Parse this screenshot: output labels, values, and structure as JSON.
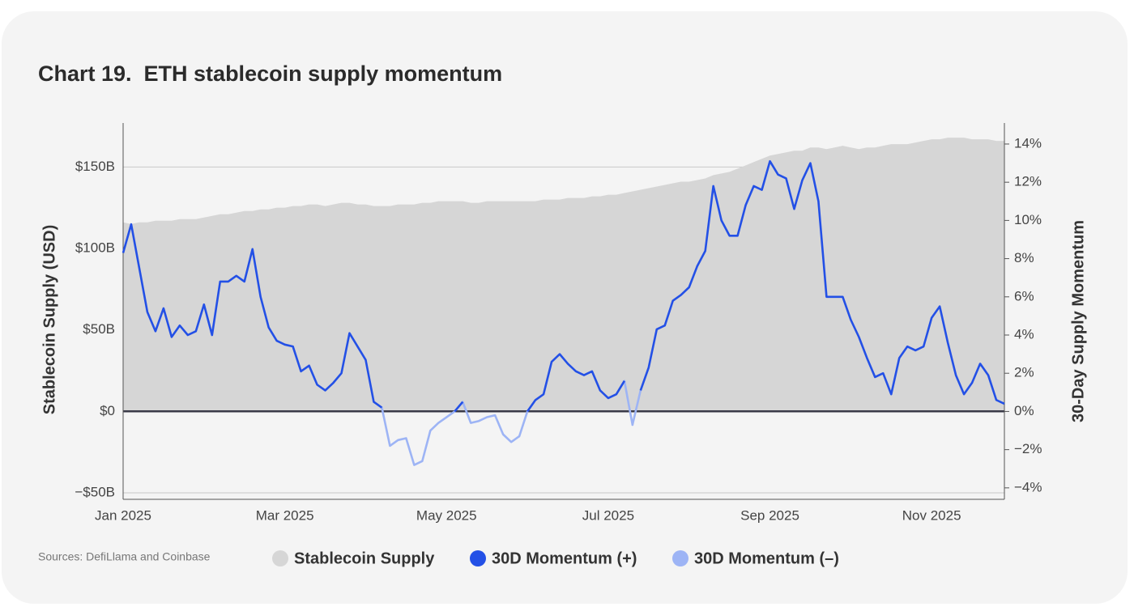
{
  "chart_data": {
    "type": "line",
    "title": "Chart 19.  ETH stablecoin supply momentum",
    "source": "Sources: DefiLlama and Coinbase",
    "ylabel": "Stablecoin Supply (USD)",
    "y2label": "30-Day Supply Momentum",
    "categories": [
      "Jan 2025",
      null,
      null,
      null,
      null,
      null,
      null,
      null,
      null,
      null,
      null,
      null,
      null,
      null,
      null,
      null,
      null,
      null,
      null,
      null,
      "Mar 2025",
      null,
      null,
      null,
      null,
      null,
      null,
      null,
      null,
      null,
      null,
      null,
      null,
      null,
      null,
      null,
      null,
      null,
      null,
      null,
      "May 2025",
      null,
      null,
      null,
      null,
      null,
      null,
      null,
      null,
      null,
      null,
      null,
      null,
      null,
      null,
      null,
      null,
      null,
      null,
      null,
      "Jul 2025",
      null,
      null,
      null,
      null,
      null,
      null,
      null,
      null,
      null,
      null,
      null,
      null,
      null,
      null,
      null,
      null,
      null,
      null,
      null,
      "Sep 2025",
      null,
      null,
      null,
      null,
      null,
      null,
      null,
      null,
      null,
      null,
      null,
      null,
      null,
      null,
      null,
      null,
      null,
      null,
      null,
      "Nov 2025",
      null,
      null,
      null,
      null,
      null,
      null,
      null,
      null,
      null
    ],
    "ylim": [
      -54,
      177
    ],
    "yticks": [
      {
        "value": -50,
        "label": "−$50B"
      },
      {
        "value": 0,
        "label": "$0"
      },
      {
        "value": 50,
        "label": "$50B"
      },
      {
        "value": 100,
        "label": "$100B"
      },
      {
        "value": 150,
        "label": "$150B"
      }
    ],
    "y2lim": [
      -4.6,
      15.1
    ],
    "y2ticks": [
      {
        "value": -4,
        "label": "−4%"
      },
      {
        "value": -2,
        "label": "−2%"
      },
      {
        "value": 0,
        "label": "0%"
      },
      {
        "value": 2,
        "label": "2%"
      },
      {
        "value": 4,
        "label": "4%"
      },
      {
        "value": 6,
        "label": "6%"
      },
      {
        "value": 8,
        "label": "8%"
      },
      {
        "value": 10,
        "label": "10%"
      },
      {
        "value": 12,
        "label": "12%"
      },
      {
        "value": 14,
        "label": "14%"
      }
    ],
    "grid": true,
    "series": [
      {
        "name": "Stablecoin Supply",
        "type": "area",
        "color": "#d6d6d6",
        "values": [
          116,
          115,
          116,
          116,
          117,
          117,
          117,
          118,
          118,
          118,
          119,
          120,
          121,
          121,
          122,
          123,
          123,
          124,
          124,
          125,
          125,
          126,
          126,
          127,
          127,
          126,
          127,
          128,
          128,
          127,
          127,
          126,
          126,
          126,
          127,
          127,
          127,
          128,
          128,
          129,
          129,
          129,
          129,
          128,
          128,
          129,
          129,
          129,
          129,
          129,
          129,
          129,
          130,
          130,
          130,
          131,
          131,
          131,
          132,
          132,
          133,
          133,
          134,
          135,
          136,
          137,
          138,
          139,
          140,
          141,
          141,
          142,
          143,
          145,
          146,
          147,
          149,
          151,
          153,
          155,
          157,
          158,
          159,
          160,
          160,
          162,
          162,
          161,
          162,
          163,
          162,
          161,
          162,
          162,
          163,
          164,
          164,
          164,
          165,
          166,
          167,
          167,
          168,
          168,
          168,
          167,
          167,
          167,
          166,
          166
        ]
      },
      {
        "name": "30D Momentum (+)",
        "type": "line",
        "axis": "y2",
        "color": "#2350e6",
        "values": [
          8.3,
          9.8,
          7.5,
          5.2,
          4.2,
          5.4,
          3.9,
          4.5,
          4.0,
          4.2,
          5.6,
          4.0,
          6.8,
          6.8,
          7.1,
          6.8,
          8.5,
          6.0,
          4.4,
          3.7,
          3.5,
          3.4,
          2.1,
          2.4,
          1.4,
          1.1,
          1.5,
          2.0,
          4.1,
          3.4,
          2.7,
          0.5,
          0.2,
          null,
          null,
          null,
          null,
          null,
          null,
          null,
          null,
          0.0,
          0.5,
          null,
          null,
          null,
          null,
          null,
          null,
          null,
          0.0,
          0.6,
          0.9,
          2.6,
          3.0,
          2.5,
          2.1,
          1.9,
          2.1,
          1.1,
          0.7,
          0.9,
          1.6,
          null,
          1.1,
          2.3,
          4.3,
          4.5,
          5.8,
          6.1,
          6.5,
          7.6,
          8.4,
          11.8,
          10.0,
          9.2,
          9.2,
          10.8,
          11.8,
          11.6,
          13.1,
          12.4,
          12.2,
          10.6,
          12.1,
          13.0,
          11.0,
          6.0,
          6.0,
          6.0,
          4.8,
          3.9,
          2.8,
          1.8,
          2.0,
          0.9,
          2.8,
          3.4,
          3.2,
          3.4,
          4.9,
          5.5,
          3.6,
          1.9,
          0.9,
          1.5,
          2.5,
          1.9,
          0.6,
          0.4
        ]
      },
      {
        "name": "30D Momentum (–)",
        "type": "line",
        "axis": "y2",
        "color": "#9db4f5",
        "values": [
          null,
          null,
          null,
          null,
          null,
          null,
          null,
          null,
          null,
          null,
          null,
          null,
          null,
          null,
          null,
          null,
          null,
          null,
          null,
          null,
          null,
          null,
          null,
          null,
          null,
          null,
          null,
          null,
          null,
          null,
          null,
          null,
          null,
          -1.8,
          -1.5,
          -1.4,
          -2.8,
          -2.6,
          -1.0,
          -0.6,
          -0.3,
          null,
          null,
          -0.6,
          -0.5,
          -0.3,
          -0.2,
          -1.2,
          -1.6,
          -1.3,
          null,
          null,
          null,
          null,
          null,
          null,
          null,
          null,
          null,
          null,
          null,
          null,
          null,
          -0.7,
          null,
          null,
          null,
          null,
          null,
          null,
          null,
          null,
          null,
          null,
          null,
          null,
          null,
          null,
          null,
          null,
          null,
          null,
          null,
          null,
          null,
          null,
          null,
          null,
          null,
          null,
          null,
          null,
          null,
          null,
          null,
          null,
          null,
          null,
          null,
          null,
          null,
          null,
          null,
          null,
          null,
          null,
          null,
          null,
          null,
          null
        ]
      }
    ]
  }
}
